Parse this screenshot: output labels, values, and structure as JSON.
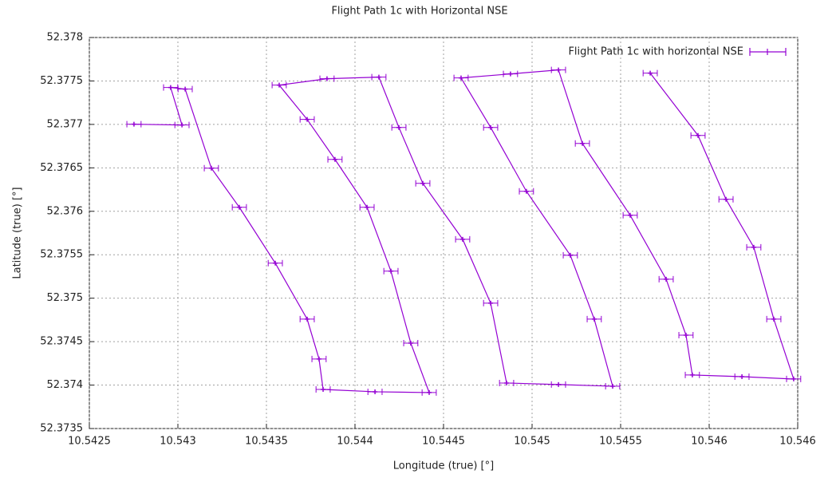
{
  "chart_data": {
    "type": "line",
    "title": "Flight Path 1c with Horizontal NSE",
    "x_label": "Longitude (true) [°]",
    "y_label": "Latitude (true) [°]",
    "xlim": [
      10.5425,
      10.5465
    ],
    "xticks": [
      10.5425,
      10.543,
      10.5435,
      10.544,
      10.5445,
      10.545,
      10.5455,
      10.546,
      {
        "value": 10.5465,
        "label": "10.546"
      }
    ],
    "ylim": [
      52.3735,
      52.378
    ],
    "yticks": [
      52.3735,
      52.374,
      52.3745,
      52.375,
      52.3755,
      52.376,
      52.3765,
      52.377,
      52.3775,
      52.378
    ],
    "grid": true,
    "legend": "top-right",
    "series": [
      {
        "name": "Flight Path 1c with horizontal NSE",
        "color": "#9400d3",
        "xerror": 4e-05,
        "x": [
          10.542752,
          10.543023,
          10.542959,
          10.543041,
          10.543189,
          10.543347,
          10.54355,
          10.54373,
          10.543797,
          10.54382,
          10.544113,
          10.544419,
          10.544315,
          10.544203,
          10.544068,
          10.543887,
          10.54373,
          10.543572,
          10.543842,
          10.544135,
          10.544248,
          10.544383,
          10.544608,
          10.544766,
          10.544856,
          10.545149,
          10.545455,
          10.545351,
          10.545216,
          10.544968,
          10.544766,
          10.544599,
          10.544878,
          10.545149,
          10.545284,
          10.545554,
          10.545757,
          10.545869,
          10.545905,
          10.546185,
          10.546477,
          10.546365,
          10.546252,
          10.546095,
          10.545937,
          10.545667
        ],
        "values": [
          52.377002,
          52.376993,
          52.377425,
          52.377406,
          52.376496,
          52.376046,
          52.375403,
          52.374759,
          52.3743,
          52.37395,
          52.373923,
          52.373914,
          52.374483,
          52.375311,
          52.376046,
          52.376597,
          52.377057,
          52.377452,
          52.377526,
          52.377544,
          52.376965,
          52.376322,
          52.375678,
          52.374943,
          52.374024,
          52.374006,
          52.373987,
          52.374759,
          52.375494,
          52.37623,
          52.376965,
          52.377535,
          52.377581,
          52.377627,
          52.376781,
          52.375954,
          52.375219,
          52.374575,
          52.374116,
          52.374097,
          52.37407,
          52.374759,
          52.375586,
          52.376138,
          52.376873,
          52.37759
        ]
      }
    ]
  }
}
